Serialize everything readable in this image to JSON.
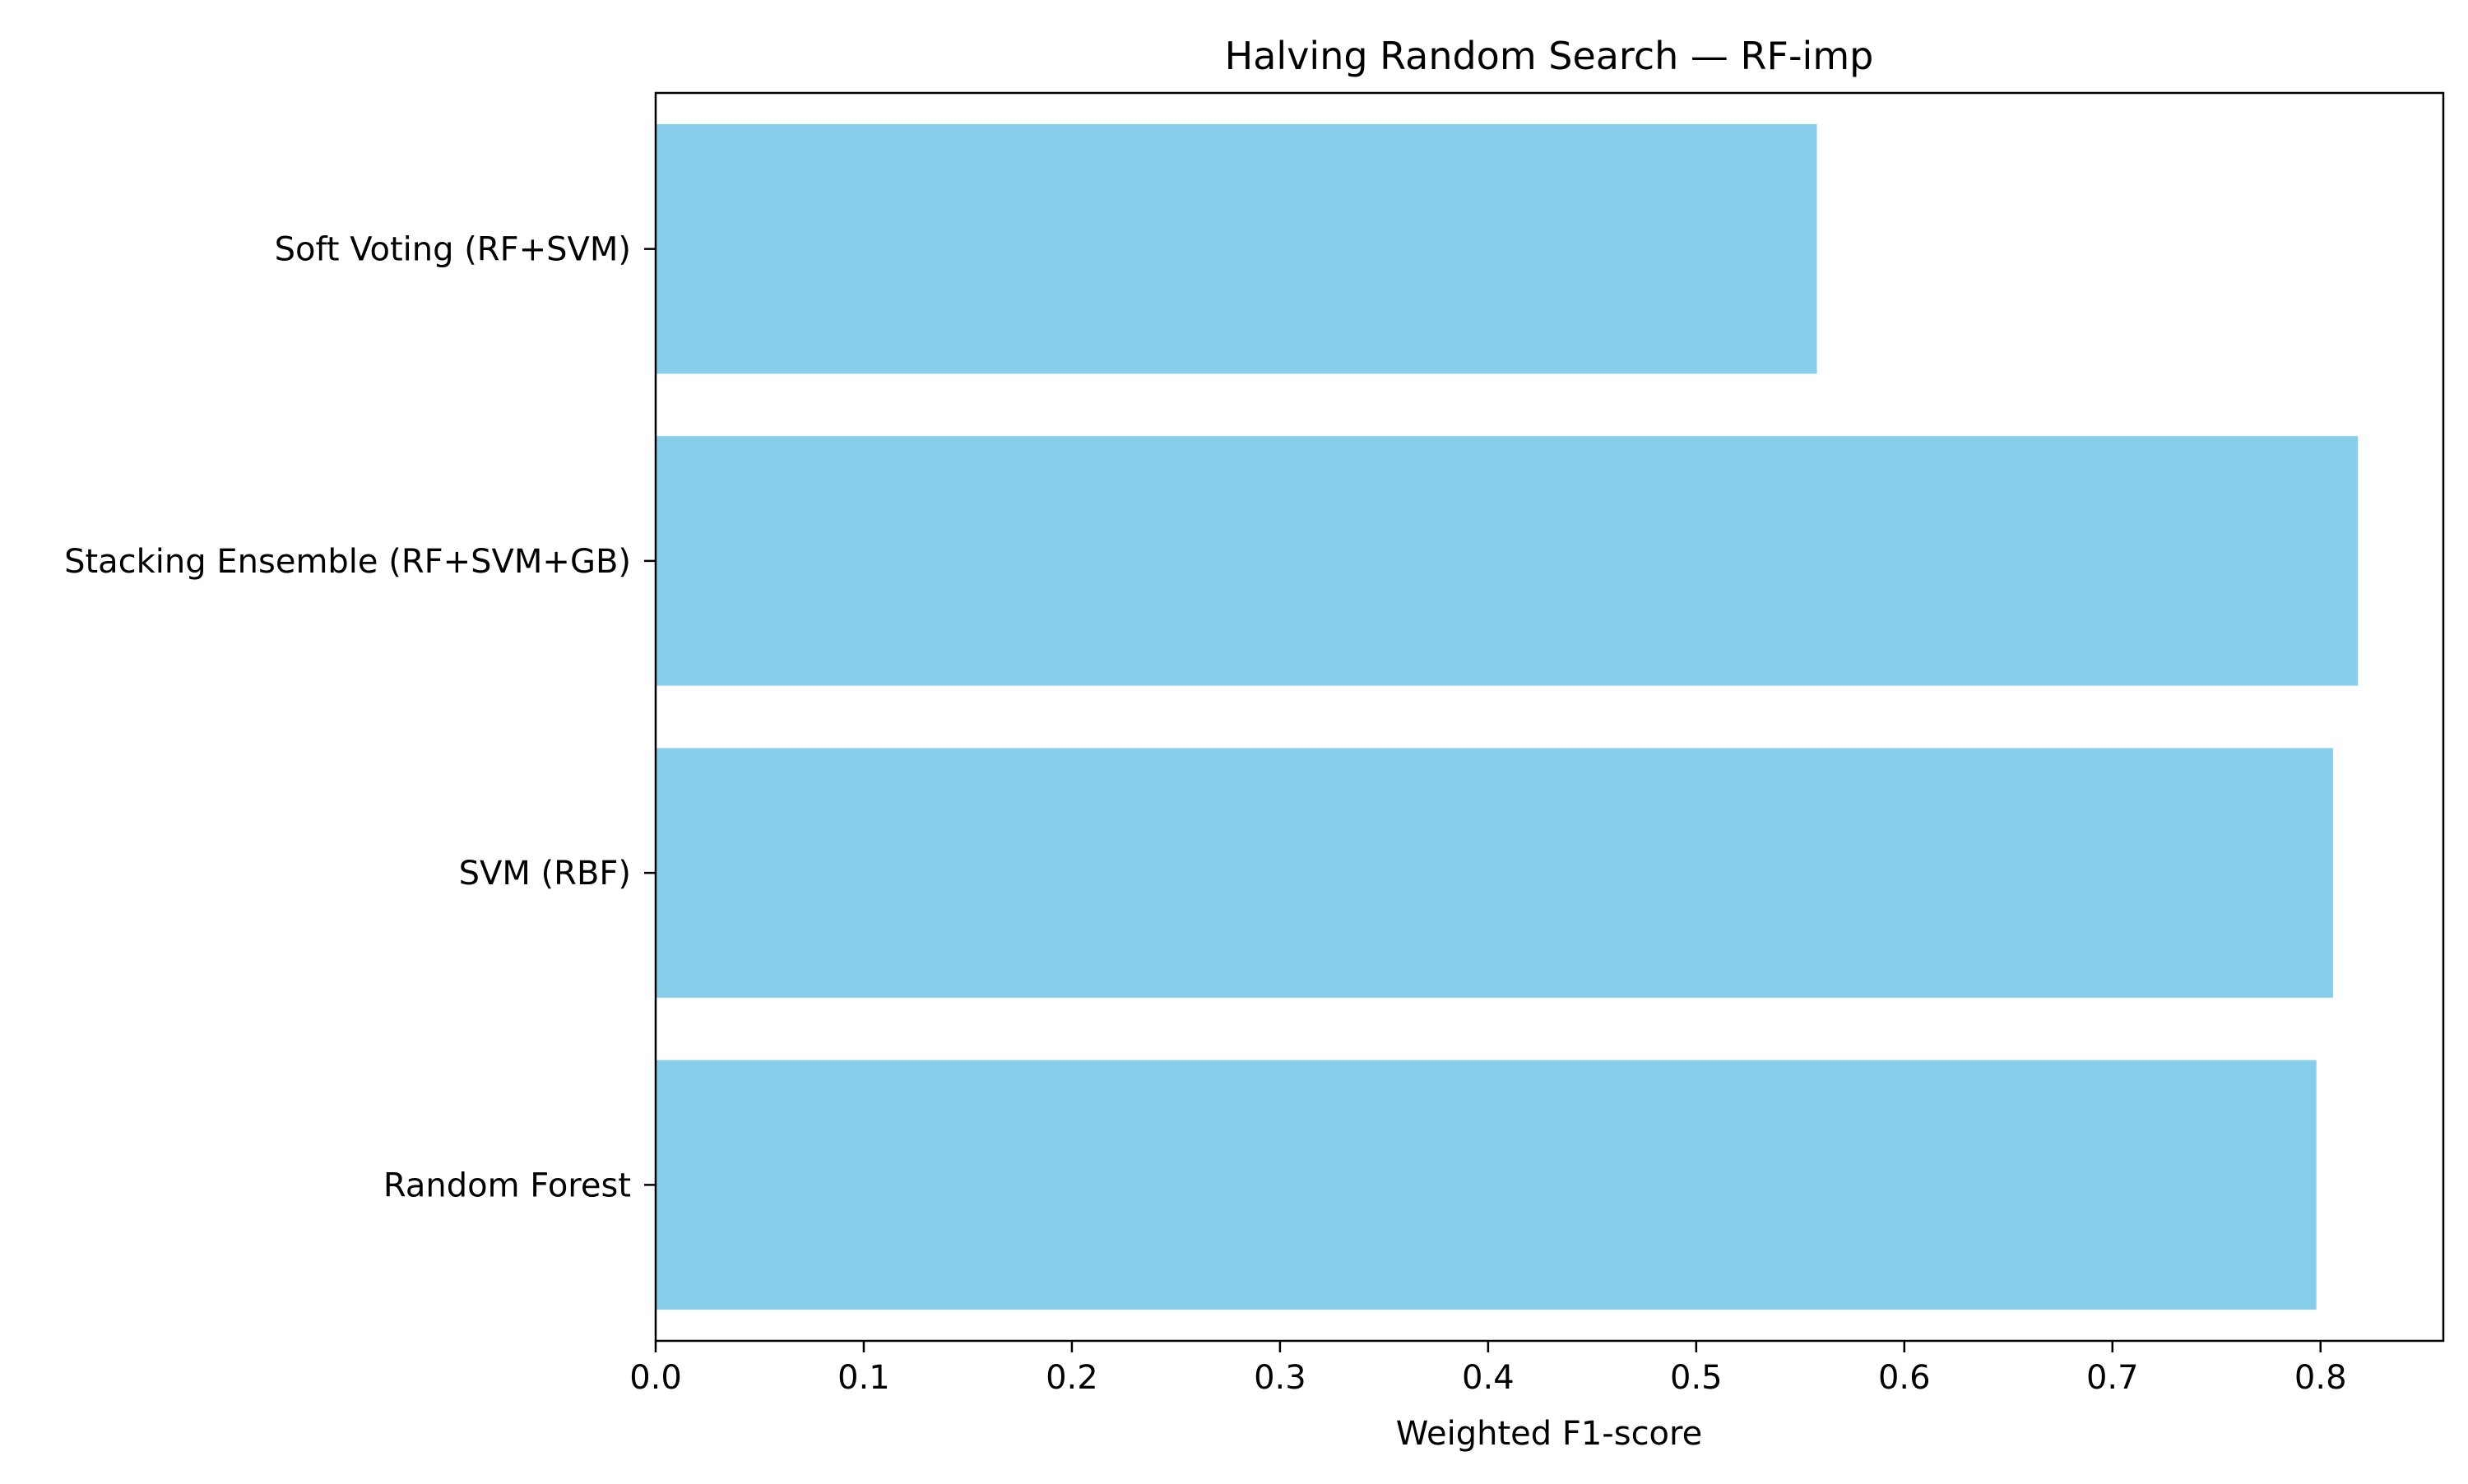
{
  "chart_data": {
    "type": "bar",
    "orientation": "horizontal",
    "title": "Halving Random Search — RF-imp",
    "xlabel": "Weighted F1-score",
    "ylabel": "",
    "categories": [
      "Random Forest",
      "SVM (RBF)",
      "Stacking Ensemble (RF+SVM+GB)",
      "Soft Voting (RF+SVM)"
    ],
    "values": [
      0.798,
      0.806,
      0.818,
      0.558
    ],
    "xlim": [
      0,
      0.859
    ],
    "xticks": [
      "0.0",
      "0.1",
      "0.2",
      "0.3",
      "0.4",
      "0.5",
      "0.6",
      "0.7",
      "0.8"
    ],
    "bar_color": "#87CEEB",
    "grid": false,
    "legend": "none"
  }
}
